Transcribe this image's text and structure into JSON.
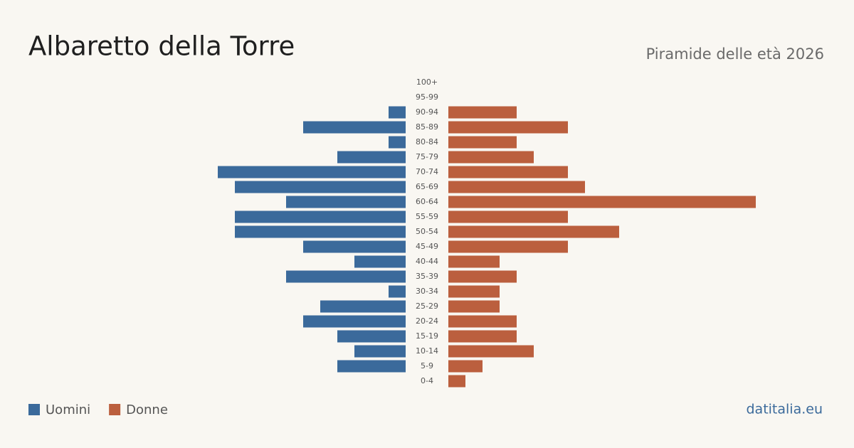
{
  "chart_data": {
    "type": "pyramid",
    "title": "Albaretto della Torre",
    "subtitle": "Piramide delle età 2026",
    "source": "datitalia.eu",
    "categories": [
      "100+",
      "95-99",
      "90-94",
      "85-89",
      "80-84",
      "75-79",
      "70-74",
      "65-69",
      "60-64",
      "55-59",
      "50-54",
      "45-49",
      "40-44",
      "35-39",
      "30-34",
      "25-29",
      "20-24",
      "15-19",
      "10-14",
      "5-9",
      "0-4"
    ],
    "series": [
      {
        "name": "Uomini",
        "color": "#3b6a9b",
        "side": "left",
        "values": [
          0,
          0,
          1,
          6,
          1,
          4,
          11,
          10,
          7,
          10,
          10,
          6,
          3,
          7,
          1,
          5,
          6,
          4,
          3,
          4,
          0
        ]
      },
      {
        "name": "Donne",
        "color": "#bb5f3e",
        "side": "right",
        "values": [
          0,
          0,
          4,
          7,
          4,
          5,
          7,
          8,
          18,
          7,
          10,
          7,
          3,
          4,
          3,
          3,
          4,
          4,
          5,
          2,
          1
        ]
      }
    ]
  }
}
